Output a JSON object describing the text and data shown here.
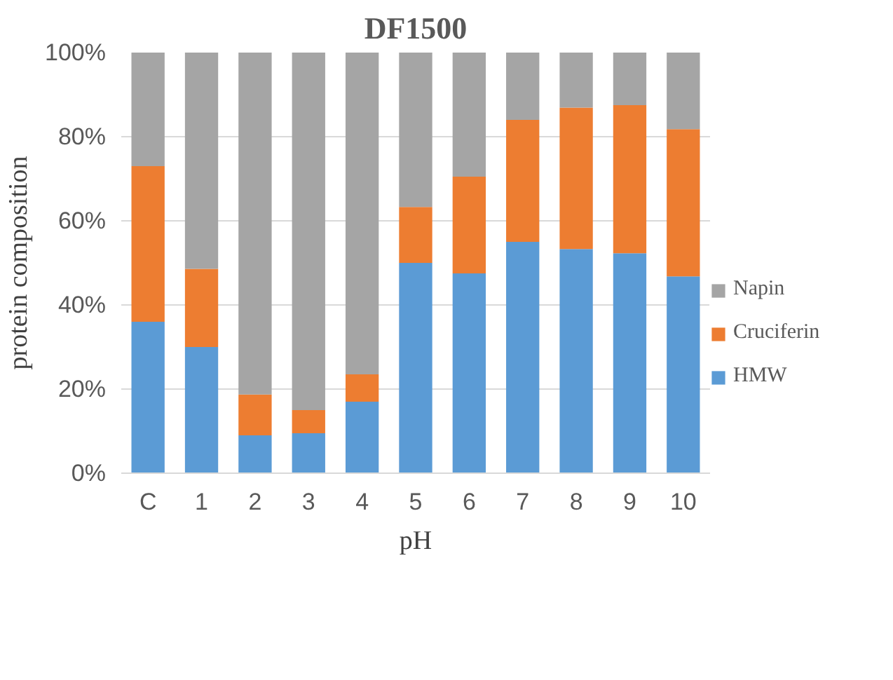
{
  "chart_data": {
    "type": "bar",
    "title": "DF1500",
    "xlabel": "pH",
    "ylabel": "protein composition",
    "categories": [
      "C",
      "1",
      "2",
      "3",
      "4",
      "5",
      "6",
      "7",
      "8",
      "9",
      "10"
    ],
    "stacked": true,
    "series": [
      {
        "name": "HMW",
        "color": "#5b9bd5",
        "values": [
          36,
          30,
          9,
          9.5,
          17,
          50,
          47.5,
          55,
          53.3,
          52.3,
          46.8
        ]
      },
      {
        "name": "Cruciferin",
        "color": "#ed7d31",
        "values": [
          37,
          18.6,
          9.7,
          5.5,
          6.5,
          13.3,
          23,
          29,
          33.6,
          35.2,
          35
        ]
      },
      {
        "name": "Napin",
        "color": "#a5a5a5",
        "values": [
          27,
          51.4,
          81.3,
          85,
          76.5,
          36.7,
          29.5,
          16,
          13.1,
          12.5,
          18.2
        ]
      }
    ],
    "ylim": [
      0,
      100
    ],
    "yticks": [
      {
        "value": 0,
        "label": "0%"
      },
      {
        "value": 20,
        "label": "20%"
      },
      {
        "value": 40,
        "label": "40%"
      },
      {
        "value": 60,
        "label": "60%"
      },
      {
        "value": 80,
        "label": "80%"
      },
      {
        "value": 100,
        "label": "100%"
      }
    ],
    "grid": "y",
    "legend": "right"
  }
}
